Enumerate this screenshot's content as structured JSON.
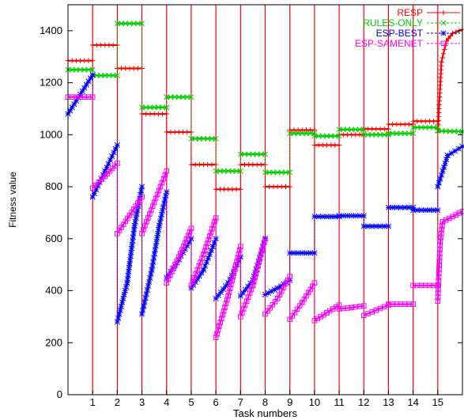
{
  "chart_data": {
    "type": "line",
    "xlabel": "Task numbers",
    "ylabel": "Fitness value",
    "xlim": [
      0,
      16
    ],
    "ylim": [
      0,
      1500
    ],
    "x_ticks": [
      1,
      2,
      3,
      4,
      5,
      6,
      7,
      8,
      9,
      10,
      11,
      12,
      13,
      14,
      15
    ],
    "y_ticks": [
      0,
      200,
      400,
      600,
      800,
      1000,
      1200,
      1400
    ],
    "task_boundaries": [
      1,
      2,
      3,
      4,
      5,
      6,
      7,
      8,
      9,
      10,
      11,
      12,
      13,
      14,
      15
    ],
    "grid": false,
    "legend_position": "top-right",
    "series": [
      {
        "name": "RESP",
        "color": "#ff0000",
        "marker": "plus",
        "segments": [
          [
            [
              0,
              1285
            ],
            [
              1,
              1285
            ]
          ],
          [
            [
              1,
              1345
            ],
            [
              2,
              1345
            ]
          ],
          [
            [
              2,
              1255
            ],
            [
              3,
              1255
            ]
          ],
          [
            [
              3,
              1080
            ],
            [
              4,
              1080
            ]
          ],
          [
            [
              4,
              1010
            ],
            [
              5,
              1010
            ]
          ],
          [
            [
              5,
              885
            ],
            [
              6,
              885
            ]
          ],
          [
            [
              6,
              790
            ],
            [
              7,
              790
            ]
          ],
          [
            [
              7,
              885
            ],
            [
              8,
              885
            ]
          ],
          [
            [
              8,
              800
            ],
            [
              9,
              800
            ]
          ],
          [
            [
              9,
              1018
            ],
            [
              10,
              1018
            ]
          ],
          [
            [
              10,
              960
            ],
            [
              11,
              960
            ]
          ],
          [
            [
              11,
              1000
            ],
            [
              12,
              1000
            ]
          ],
          [
            [
              12,
              1022
            ],
            [
              13,
              1022
            ]
          ],
          [
            [
              13,
              1040
            ],
            [
              14,
              1040
            ]
          ],
          [
            [
              14,
              1052
            ],
            [
              15,
              1052
            ]
          ],
          [
            [
              15,
              1010
            ],
            [
              15.15,
              1280
            ],
            [
              15.35,
              1360
            ],
            [
              15.6,
              1390
            ],
            [
              16,
              1405
            ]
          ]
        ]
      },
      {
        "name": "RULES-ONLY",
        "color": "#00cc00",
        "marker": "x",
        "segments": [
          [
            [
              0,
              1250
            ],
            [
              1,
              1250
            ]
          ],
          [
            [
              1,
              1228
            ],
            [
              2,
              1228
            ]
          ],
          [
            [
              2,
              1428
            ],
            [
              3,
              1428
            ]
          ],
          [
            [
              3,
              1105
            ],
            [
              4,
              1105
            ]
          ],
          [
            [
              4,
              1145
            ],
            [
              5,
              1145
            ]
          ],
          [
            [
              5,
              985
            ],
            [
              6,
              985
            ]
          ],
          [
            [
              6,
              860
            ],
            [
              7,
              860
            ]
          ],
          [
            [
              7,
              925
            ],
            [
              8,
              925
            ]
          ],
          [
            [
              8,
              855
            ],
            [
              9,
              855
            ]
          ],
          [
            [
              9,
              1005
            ],
            [
              10,
              1005
            ]
          ],
          [
            [
              10,
              995
            ],
            [
              11,
              995
            ]
          ],
          [
            [
              11,
              1020
            ],
            [
              12,
              1020
            ]
          ],
          [
            [
              12,
              1000
            ],
            [
              13,
              1000
            ]
          ],
          [
            [
              13,
              1005
            ],
            [
              14,
              1005
            ]
          ],
          [
            [
              14,
              1028
            ],
            [
              15,
              1028
            ]
          ],
          [
            [
              15,
              1015
            ],
            [
              16,
              1012
            ]
          ]
        ]
      },
      {
        "name": "ESP-BEST",
        "color": "#0000ff",
        "marker": "star",
        "segments": [
          [
            [
              0,
              1080
            ],
            [
              1,
              1230
            ]
          ],
          [
            [
              1,
              760
            ],
            [
              1.5,
              860
            ],
            [
              2,
              960
            ]
          ],
          [
            [
              2,
              280
            ],
            [
              2.4,
              430
            ],
            [
              2.7,
              650
            ],
            [
              3,
              800
            ]
          ],
          [
            [
              3,
              310
            ],
            [
              3.4,
              480
            ],
            [
              3.7,
              650
            ],
            [
              4,
              780
            ]
          ],
          [
            [
              4,
              450
            ],
            [
              4.5,
              520
            ],
            [
              5,
              600
            ]
          ],
          [
            [
              5,
              410
            ],
            [
              5.5,
              480
            ],
            [
              6,
              600
            ]
          ],
          [
            [
              6,
              370
            ],
            [
              6.5,
              430
            ],
            [
              7,
              530
            ]
          ],
          [
            [
              7,
              380
            ],
            [
              7.5,
              440
            ],
            [
              8,
              600
            ]
          ],
          [
            [
              8,
              385
            ],
            [
              8.5,
              410
            ],
            [
              9,
              440
            ]
          ],
          [
            [
              9,
              545
            ],
            [
              10,
              545
            ]
          ],
          [
            [
              10,
              685
            ],
            [
              11,
              685
            ]
          ],
          [
            [
              11,
              688
            ],
            [
              12,
              688
            ]
          ],
          [
            [
              12,
              648
            ],
            [
              13,
              648
            ]
          ],
          [
            [
              13,
              720
            ],
            [
              14,
              720
            ]
          ],
          [
            [
              14,
              710
            ],
            [
              15,
              710
            ]
          ],
          [
            [
              15,
              800
            ],
            [
              15.4,
              920
            ],
            [
              16,
              955
            ]
          ]
        ]
      },
      {
        "name": "ESP-SAMENET",
        "color": "#ff00ff",
        "marker": "square",
        "segments": [
          [
            [
              0,
              1145
            ],
            [
              1,
              1145
            ]
          ],
          [
            [
              1,
              795
            ],
            [
              1.5,
              840
            ],
            [
              2,
              890
            ]
          ],
          [
            [
              2,
              620
            ],
            [
              2.5,
              690
            ],
            [
              3,
              760
            ]
          ],
          [
            [
              3,
              620
            ],
            [
              3.5,
              740
            ],
            [
              4,
              860
            ]
          ],
          [
            [
              4,
              430
            ],
            [
              4.5,
              530
            ],
            [
              5,
              640
            ]
          ],
          [
            [
              5,
              420
            ],
            [
              5.5,
              540
            ],
            [
              6,
              680
            ]
          ],
          [
            [
              6,
              220
            ],
            [
              6.5,
              380
            ],
            [
              7,
              570
            ]
          ],
          [
            [
              7,
              300
            ],
            [
              7.5,
              420
            ],
            [
              8,
              600
            ]
          ],
          [
            [
              8,
              310
            ],
            [
              8.5,
              370
            ],
            [
              9,
              455
            ]
          ],
          [
            [
              9,
              290
            ],
            [
              9.5,
              355
            ],
            [
              10,
              430
            ]
          ],
          [
            [
              10,
              285
            ],
            [
              10.5,
              315
            ],
            [
              11,
              345
            ]
          ],
          [
            [
              11,
              330
            ],
            [
              11.5,
              335
            ],
            [
              12,
              342
            ]
          ],
          [
            [
              12,
              305
            ],
            [
              12.5,
              325
            ],
            [
              13,
              345
            ]
          ],
          [
            [
              13,
              348
            ],
            [
              14,
              348
            ]
          ],
          [
            [
              14,
              420
            ],
            [
              15,
              420
            ]
          ],
          [
            [
              15,
              360
            ],
            [
              15.1,
              590
            ],
            [
              15.2,
              665
            ],
            [
              16,
              705
            ]
          ]
        ]
      }
    ]
  }
}
